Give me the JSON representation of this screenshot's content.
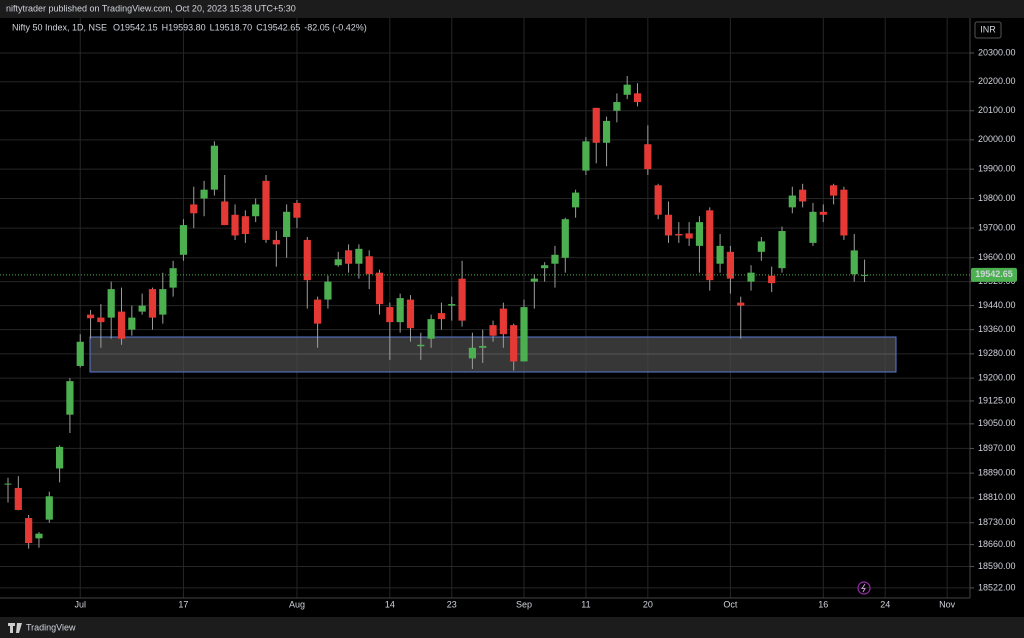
{
  "header": {
    "publisher": "niftytrader published on TradingView.com, Oct 20, 2023 15:38 UTC+5:30"
  },
  "footer": {
    "brand": "TradingView"
  },
  "chart_data": {
    "type": "candlestick",
    "symbol": "Nifty 50 Index, 1D, NSE",
    "legend_values": [
      "O19542.15",
      "H19593.80",
      "L19518.70",
      "C19542.65",
      "-82.05 (-0.42%)"
    ],
    "currency": "INR",
    "log_scale": true,
    "grid": true,
    "up_color": "#4caf50",
    "down_color": "#e53935",
    "categories": [
      null,
      null,
      null,
      null,
      null,
      null,
      null,
      "Jul",
      null,
      null,
      null,
      null,
      null,
      null,
      null,
      null,
      null,
      "17",
      null,
      null,
      null,
      null,
      null,
      null,
      null,
      null,
      null,
      null,
      "Aug",
      null,
      null,
      null,
      null,
      null,
      null,
      null,
      null,
      "14",
      null,
      null,
      null,
      null,
      null,
      "23",
      null,
      null,
      null,
      null,
      null,
      null,
      "Sep",
      null,
      null,
      null,
      null,
      null,
      "11",
      null,
      null,
      null,
      null,
      null,
      "20",
      null,
      null,
      null,
      null,
      null,
      null,
      null,
      "Oct",
      null,
      null,
      null,
      null,
      null,
      null,
      null,
      null,
      "16",
      null,
      null,
      null,
      null,
      null,
      "24",
      null,
      null,
      null,
      null,
      null,
      "Nov",
      null,
      null
    ],
    "open": [
      18855,
      18842,
      18745,
      18680,
      18740,
      18905,
      19080,
      19240,
      19410,
      19400,
      19400,
      19420,
      19360,
      19420,
      19495,
      19410,
      19500,
      19610,
      19780,
      19800,
      19830,
      19790,
      19745,
      19740,
      19740,
      19860,
      19660,
      19670,
      19785,
      19660,
      19460,
      19460,
      19575,
      19625,
      19580,
      19605,
      19550,
      19435,
      19385,
      19460,
      19305,
      19330,
      19415,
      19440,
      19530,
      19265,
      19300,
      19375,
      19430,
      19375,
      19255,
      19520,
      19565,
      19580,
      19600,
      19770,
      19895,
      20110,
      19990,
      20100,
      20155,
      20160,
      19985,
      19845,
      19745,
      19680,
      19682,
      19640,
      19760,
      19580,
      19620,
      19450,
      19520,
      19620,
      19540,
      19565,
      19770,
      19830,
      19650,
      19755,
      19845,
      19830,
      19545,
      19542.15,
      null,
      null,
      null,
      null,
      null,
      null,
      null,
      null,
      null,
      null
    ],
    "high": [
      18875,
      18880,
      18755,
      18700,
      18830,
      18980,
      19200,
      19345,
      19425,
      19445,
      19520,
      19500,
      19440,
      19480,
      19500,
      19550,
      19590,
      19730,
      19840,
      19860,
      19995,
      19880,
      19780,
      19760,
      19800,
      19880,
      19690,
      19780,
      19795,
      19670,
      19470,
      19540,
      19620,
      19645,
      19645,
      19625,
      19560,
      19450,
      19480,
      19475,
      19350,
      19410,
      19450,
      19470,
      19590,
      19350,
      19360,
      19390,
      19450,
      19380,
      19460,
      19545,
      19585,
      19640,
      19735,
      19830,
      20010,
      20110,
      20080,
      20160,
      20220,
      20195,
      20050,
      19850,
      19790,
      19720,
      19720,
      19740,
      19770,
      19680,
      19640,
      19470,
      19575,
      19670,
      19570,
      19705,
      19840,
      19850,
      19785,
      19780,
      19850,
      19840,
      19680,
      19593.8,
      null,
      null,
      null,
      null,
      null,
      null,
      null,
      null,
      null,
      null
    ],
    "low": [
      18795,
      18770,
      18647,
      18650,
      18730,
      18860,
      19020,
      19235,
      19330,
      19300,
      19330,
      19310,
      19340,
      19410,
      19360,
      19380,
      19470,
      19590,
      19700,
      19740,
      19810,
      19710,
      19660,
      19650,
      19720,
      19650,
      19570,
      19600,
      19700,
      19430,
      19300,
      19430,
      19570,
      19550,
      19530,
      19495,
      19410,
      19260,
      19350,
      19320,
      19260,
      19300,
      19360,
      19390,
      19370,
      19230,
      19250,
      19320,
      19300,
      19225,
      19255,
      19430,
      19520,
      19500,
      19550,
      19735,
      19880,
      19920,
      19910,
      20060,
      20140,
      20115,
      19880,
      19730,
      19650,
      19650,
      19640,
      19550,
      19490,
      19550,
      19480,
      19330,
      19490,
      19590,
      19485,
      19550,
      19750,
      19770,
      19640,
      19720,
      19780,
      19660,
      19520,
      19518.7,
      null,
      null,
      null,
      null,
      null,
      null,
      null,
      null,
      null,
      null
    ],
    "close": [
      18856,
      18771,
      18665,
      18695,
      18815,
      18975,
      19190,
      19320,
      19398,
      19385,
      19495,
      19330,
      19400,
      19440,
      19400,
      19495,
      19565,
      19710,
      19750,
      19830,
      19980,
      19710,
      19675,
      19680,
      19780,
      19660,
      19645,
      19755,
      19735,
      19525,
      19380,
      19520,
      19595,
      19580,
      19630,
      19545,
      19445,
      19385,
      19465,
      19365,
      19310,
      19395,
      19395,
      19445,
      19390,
      19300,
      19306,
      19340,
      19345,
      19255,
      19435,
      19530,
      19575,
      19610,
      19730,
      19820,
      19995,
      19990,
      20065,
      20130,
      20190,
      20130,
      19900,
      19745,
      19675,
      19675,
      19665,
      19720,
      19525,
      19640,
      19530,
      19440,
      19550,
      19655,
      19515,
      19690,
      19810,
      19790,
      19755,
      19745,
      19810,
      19675,
      19624.7,
      19542.65,
      null,
      null,
      null,
      null,
      null,
      null,
      null,
      null,
      null,
      null
    ],
    "last_price": {
      "value": 19542.65,
      "label": "19542.65"
    },
    "ylim": [
      18490,
      20422
    ],
    "yticks": [
      {
        "value": 20300,
        "label": "20300.00"
      },
      {
        "value": 20200,
        "label": "20200.00"
      },
      {
        "value": 20100,
        "label": "20100.00"
      },
      {
        "value": 20000,
        "label": "20000.00"
      },
      {
        "value": 19900,
        "label": "19900.00"
      },
      {
        "value": 19800,
        "label": "19800.00"
      },
      {
        "value": 19700,
        "label": "19700.00"
      },
      {
        "value": 19600,
        "label": "19600.00"
      },
      {
        "value": 19520,
        "label": "19520.00"
      },
      {
        "value": 19440,
        "label": "19440.00"
      },
      {
        "value": 19360,
        "label": "19360.00"
      },
      {
        "value": 19280,
        "label": "19280.00"
      },
      {
        "value": 19200,
        "label": "19200.00"
      },
      {
        "value": 19125,
        "label": "19125.00"
      },
      {
        "value": 19050,
        "label": "19050.00"
      },
      {
        "value": 18970,
        "label": "18970.00"
      },
      {
        "value": 18890,
        "label": "18890.00"
      },
      {
        "value": 18810,
        "label": "18810.00"
      },
      {
        "value": 18730,
        "label": "18730.00"
      },
      {
        "value": 18660,
        "label": "18660.00"
      },
      {
        "value": 18590,
        "label": "18590.00"
      },
      {
        "value": 18522,
        "label": "18522.00"
      }
    ]
  }
}
